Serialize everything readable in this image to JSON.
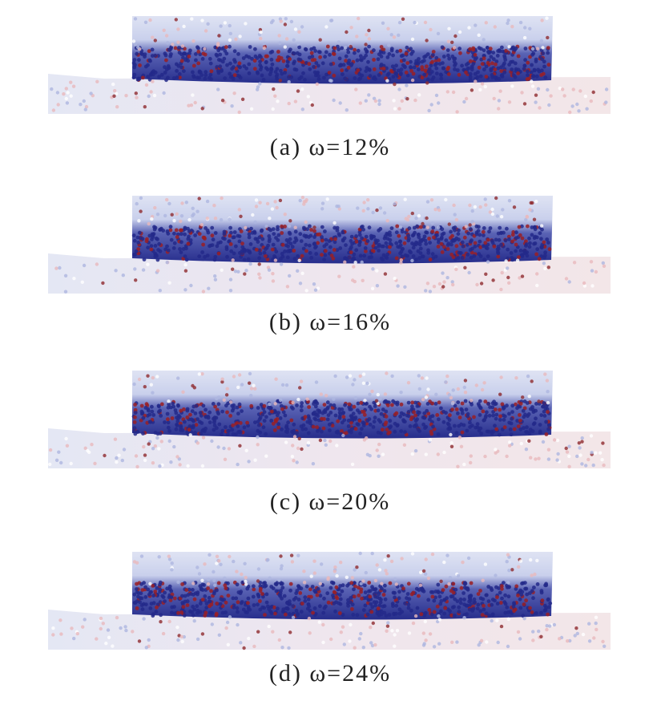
{
  "panels": [
    {
      "caption": "(a) ω=12%"
    },
    {
      "caption": "(b) ω=16%"
    },
    {
      "caption": "(c) ω=20%"
    },
    {
      "caption": "(d) ω=24%"
    }
  ]
}
